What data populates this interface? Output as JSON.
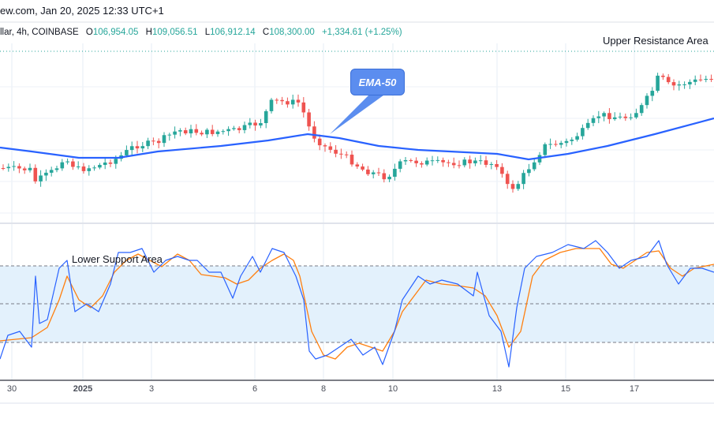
{
  "header": {
    "title": "ew.com, Jan 20, 2025 12:33 UTC+1"
  },
  "ohlc": {
    "symbol": "llar, 4h, COINBASE",
    "open_label": "O",
    "open": "106,954.05",
    "high_label": "H",
    "high": "109,056.51",
    "low_label": "L",
    "low": "106,912.14",
    "close_label": "C",
    "close": "108,300.00",
    "change": "+1,334.61 (+1.25%)"
  },
  "annotations": {
    "upper": "Upper Resistance Area",
    "lower": "Lower Support Area",
    "ema": "EMA-50"
  },
  "x_axis": {
    "labels": [
      "30",
      "2025",
      "3",
      "6",
      "8",
      "10",
      "13",
      "15",
      "17"
    ]
  },
  "colors": {
    "up": "#26a69a",
    "down": "#ef5350",
    "ema": "#2962ff",
    "k": "#2962ff",
    "d": "#ff7f0e",
    "band": "#e3f1fc"
  }
}
